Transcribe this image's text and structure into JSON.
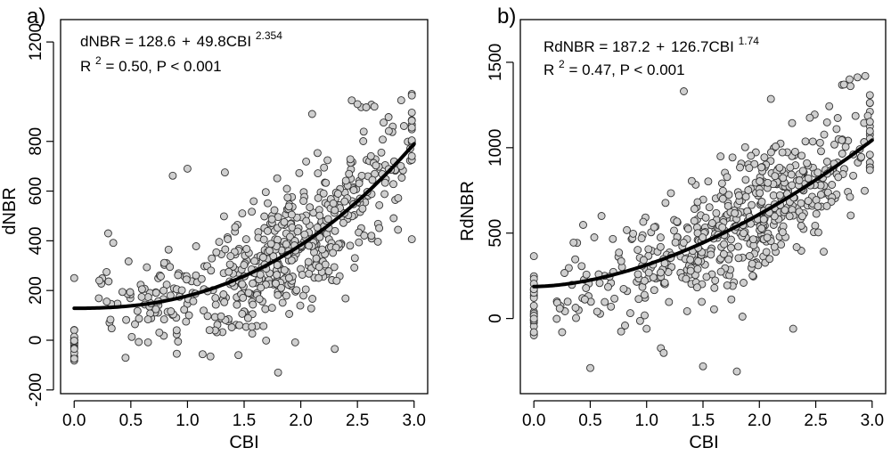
{
  "chart_data": [
    {
      "type": "scatter",
      "panel_label": "a)",
      "xlabel": "CBI",
      "ylabel": "dNBR",
      "xlim": [
        -0.12,
        3.12
      ],
      "ylim": [
        -215,
        1290
      ],
      "xticks": [
        0.0,
        0.5,
        1.0,
        1.5,
        2.0,
        2.5,
        3.0
      ],
      "xtick_labels": [
        "0.0",
        "0.5",
        "1.0",
        "1.5",
        "2.0",
        "2.5",
        "3.0"
      ],
      "yticks": [
        -200,
        0,
        200,
        400,
        600,
        800,
        1200
      ],
      "ytick_labels": [
        "-200",
        "0",
        "200",
        "400",
        "600",
        "800",
        "1200"
      ],
      "equation": {
        "prefix": "dNBR = 128.6",
        "plus": "+",
        "term": "49.8CBI",
        "exponent": "2.354"
      },
      "stats": {
        "r": "R",
        "r_exp": "2",
        "text": " = 0.50, P < 0.001"
      },
      "fit": {
        "a": 128.6,
        "b": 49.8,
        "c": 2.354
      },
      "point_generation": {
        "seed": 11,
        "n": 560,
        "sd": 130,
        "zero_n": 22,
        "zero_center": -15,
        "zero_spread": 80,
        "outliers": [
          [
            2.1,
            910
          ],
          [
            2.45,
            965
          ],
          [
            2.5,
            950
          ],
          [
            2.65,
            940
          ],
          [
            1.33,
            675
          ],
          [
            1.0,
            690
          ],
          [
            0.3,
            430
          ],
          [
            0.87,
            662
          ],
          [
            0.0,
            250
          ],
          [
            1.8,
            -130
          ],
          [
            2.3,
            -35
          ],
          [
            1.45,
            -60
          ]
        ]
      }
    },
    {
      "type": "scatter",
      "panel_label": "b)",
      "xlabel": "CBI",
      "ylabel": "RdNBR",
      "xlim": [
        -0.12,
        3.12
      ],
      "ylim": [
        -440,
        1750
      ],
      "xticks": [
        0.0,
        0.5,
        1.0,
        1.5,
        2.0,
        2.5,
        3.0
      ],
      "xtick_labels": [
        "0.0",
        "0.5",
        "1.0",
        "1.5",
        "2.0",
        "2.5",
        "3.0"
      ],
      "yticks": [
        0,
        500,
        1000,
        1500
      ],
      "ytick_labels": [
        "0",
        "500",
        "1000",
        "1500"
      ],
      "equation": {
        "prefix": "RdNBR = 187.2",
        "plus": "+",
        "term": "126.7CBI",
        "exponent": "1.74"
      },
      "stats": {
        "r": "R",
        "r_exp": "2",
        "text": " = 0.47, P < 0.001"
      },
      "fit": {
        "a": 187.2,
        "b": 126.7,
        "c": 1.74
      },
      "point_generation": {
        "seed": 29,
        "n": 560,
        "sd": 185,
        "zero_n": 22,
        "zero_center": 80,
        "zero_spread": 180,
        "outliers": [
          [
            1.33,
            1330
          ],
          [
            2.8,
            1400
          ],
          [
            2.75,
            1370
          ],
          [
            0.5,
            -290
          ],
          [
            1.5,
            -280
          ],
          [
            1.8,
            -310
          ],
          [
            2.3,
            -60
          ],
          [
            0.0,
            365
          ],
          [
            1.0,
            -60
          ],
          [
            0.6,
            600
          ]
        ]
      }
    }
  ]
}
